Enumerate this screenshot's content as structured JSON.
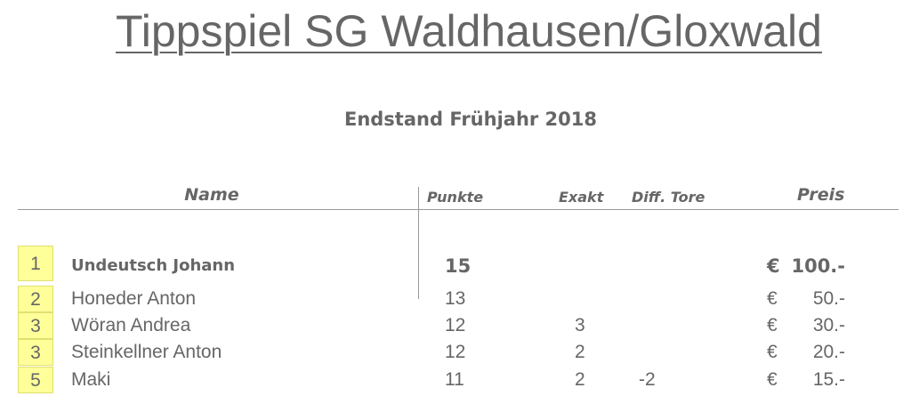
{
  "title": "Tippspiel SG Waldhausen/Gloxwald",
  "subtitle": "Endstand Frühjahr 2018",
  "table": {
    "headers": {
      "name": "Name",
      "points": "Punkte",
      "exact": "Exakt",
      "diff": "Diff. Tore",
      "prize": "Preis"
    },
    "rows": [
      {
        "rank": 1,
        "name": "Undeutsch Johann",
        "points": 15,
        "currency": "€",
        "prize": "100.-"
      },
      {
        "rank": 2,
        "name": "Honeder Anton",
        "points": 13,
        "currency": "€",
        "prize": "50.-"
      },
      {
        "rank": 3,
        "name": "Wöran Andrea",
        "points": 12,
        "exact": 3,
        "currency": "€",
        "prize": "30.-"
      },
      {
        "rank": 3,
        "name": "Steinkellner Anton",
        "points": 12,
        "exact": 2,
        "currency": "€",
        "prize": "20.-"
      },
      {
        "rank": 5,
        "name": "Maki",
        "points": 11,
        "exact": 2,
        "diff": -2,
        "currency": "€",
        "prize": "15.-"
      }
    ]
  }
}
